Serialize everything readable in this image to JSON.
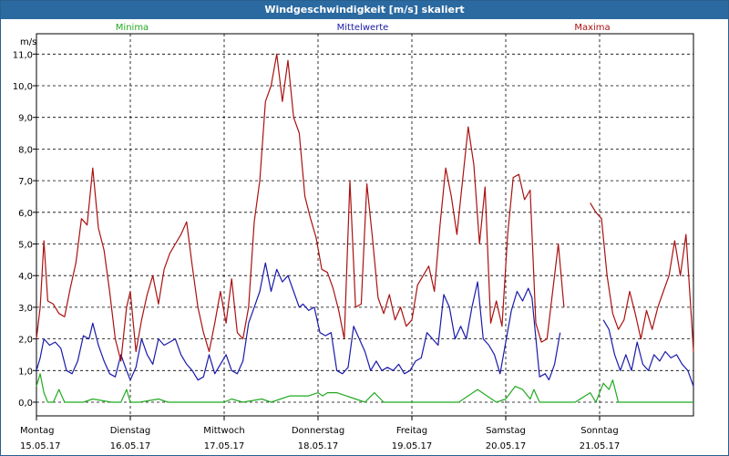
{
  "window": {
    "title": "Windgeschwindigkeit [m/s] skaliert"
  },
  "chart_data": {
    "type": "line",
    "title": "Windgeschwindigkeit [m/s] skaliert",
    "ylabel": "m/s",
    "xlabel": "",
    "ylim": [
      0,
      11.5
    ],
    "yticks": [
      0.0,
      1.0,
      2.0,
      3.0,
      4.0,
      5.0,
      6.0,
      7.0,
      8.0,
      9.0,
      10.0,
      11.0
    ],
    "ytick_labels": [
      "0,0",
      "1,0",
      "2,0",
      "3,0",
      "4,0",
      "5,0",
      "6,0",
      "7,0",
      "8,0",
      "9,0",
      "10,0",
      "11,0"
    ],
    "xlim": [
      0,
      7
    ],
    "days": [
      {
        "day": "Montag",
        "date": "15.05.17"
      },
      {
        "day": "Dienstag",
        "date": "16.05.17"
      },
      {
        "day": "Mittwoch",
        "date": "17.05.17"
      },
      {
        "day": "Donnerstag",
        "date": "18.05.17"
      },
      {
        "day": "Freitag",
        "date": "19.05.17"
      },
      {
        "day": "Samstag",
        "date": "20.05.17"
      },
      {
        "day": "Sonntag",
        "date": "21.05.17"
      }
    ],
    "grid": true,
    "legend_position": "top",
    "series": [
      {
        "name": "Minima",
        "color": "#22aa22",
        "x": [
          0,
          0.04,
          0.08,
          0.12,
          0.18,
          0.24,
          0.3,
          0.5,
          0.6,
          0.8,
          0.9,
          0.96,
          1.0,
          1.1,
          1.3,
          1.4,
          2.0,
          2.08,
          2.2,
          2.4,
          2.5,
          2.7,
          2.8,
          2.9,
          3.0,
          3.05,
          3.1,
          3.2,
          3.5,
          3.6,
          3.7,
          3.78,
          3.9,
          4.0,
          4.5,
          4.7,
          4.9,
          5.0,
          5.1,
          5.18,
          5.26,
          5.3,
          5.36,
          5.44,
          5.74,
          5.9,
          5.96,
          6.04,
          6.1,
          6.14,
          6.2,
          7.0
        ],
        "values": [
          0.5,
          0.9,
          0.3,
          0.0,
          0.0,
          0.4,
          0.0,
          0.0,
          0.1,
          0.0,
          0.0,
          0.4,
          0.0,
          0.0,
          0.1,
          0.0,
          0.0,
          0.1,
          0.0,
          0.1,
          0.0,
          0.2,
          0.2,
          0.2,
          0.3,
          0.2,
          0.3,
          0.3,
          0.0,
          0.3,
          0.0,
          0.0,
          0.0,
          0.0,
          0.0,
          0.4,
          0.0,
          0.1,
          0.5,
          0.4,
          0.1,
          0.4,
          0.0,
          0.0,
          0.0,
          0.3,
          0.0,
          0.6,
          0.4,
          0.7,
          0.0,
          0.0
        ]
      },
      {
        "name": "Mittelwerte",
        "color": "#1a1aaa",
        "x": [
          0,
          0.04,
          0.08,
          0.14,
          0.2,
          0.26,
          0.32,
          0.38,
          0.44,
          0.5,
          0.56,
          0.6,
          0.66,
          0.72,
          0.78,
          0.84,
          0.9,
          0.96,
          1.0,
          1.06,
          1.12,
          1.18,
          1.24,
          1.3,
          1.36,
          1.42,
          1.48,
          1.54,
          1.6,
          1.66,
          1.72,
          1.78,
          1.84,
          1.9,
          1.96,
          2.02,
          2.08,
          2.14,
          2.2,
          2.26,
          2.32,
          2.38,
          2.44,
          2.5,
          2.56,
          2.62,
          2.68,
          2.74,
          2.8,
          2.84,
          2.9,
          2.96,
          3.02,
          3.08,
          3.14,
          3.2,
          3.26,
          3.32,
          3.38,
          3.44,
          3.5,
          3.56,
          3.62,
          3.68,
          3.74,
          3.8,
          3.86,
          3.92,
          3.98,
          4.04,
          4.1,
          4.16,
          4.22,
          4.28,
          4.34,
          4.4,
          4.46,
          4.52,
          4.58,
          4.64,
          4.7,
          4.76,
          4.82,
          4.88,
          4.94,
          5.0,
          5.06,
          5.12,
          5.18,
          5.24,
          5.28,
          5.36,
          5.42,
          5.46
        ],
        "values": [
          1.0,
          1.4,
          2.0,
          1.8,
          1.9,
          1.7,
          1.0,
          0.9,
          1.3,
          2.1,
          2.0,
          2.5,
          1.8,
          1.3,
          0.9,
          0.8,
          1.5,
          1.0,
          0.7,
          1.1,
          2.0,
          1.5,
          1.2,
          2.0,
          1.8,
          1.9,
          2.0,
          1.5,
          1.2,
          1.0,
          0.7,
          0.8,
          1.5,
          0.9,
          1.2,
          1.5,
          1.0,
          0.9,
          1.3,
          2.5,
          3.0,
          3.5,
          4.4,
          3.5,
          4.2,
          3.8,
          4.0,
          3.5,
          3.0,
          3.1,
          2.9,
          3.0,
          2.2,
          2.1,
          2.2,
          1.0,
          0.9,
          1.1,
          2.4,
          2.0,
          1.6,
          1.0,
          1.3,
          1.0,
          1.1,
          1.0,
          1.2,
          0.9,
          1.0,
          1.3,
          1.4,
          2.2,
          2.0,
          1.8,
          3.4,
          3.0,
          2.0,
          2.4,
          2.0,
          3.0,
          3.8,
          2.0,
          1.8,
          1.5,
          0.9,
          1.9,
          2.9,
          3.5,
          3.2,
          3.6,
          3.3,
          0.8,
          0.9,
          0.7
        ],
        "segments": [
          {
            "x": [
              5.46,
              5.52,
              5.58
            ],
            "values": [
              0.7,
              1.2,
              2.2
            ]
          },
          {
            "x": [
              6.04,
              6.1,
              6.16,
              6.22,
              6.28,
              6.34,
              6.4,
              6.46,
              6.52,
              6.58,
              6.64,
              6.7,
              6.76,
              6.82,
              6.88,
              6.94,
              7.0
            ],
            "values": [
              2.6,
              2.3,
              1.5,
              1.0,
              1.5,
              1.0,
              1.9,
              1.2,
              1.0,
              1.5,
              1.3,
              1.6,
              1.4,
              1.5,
              1.2,
              1.0,
              0.5
            ]
          }
        ]
      },
      {
        "name": "Maxima",
        "color": "#aa1111",
        "x": [
          0,
          0.04,
          0.08,
          0.12,
          0.18,
          0.24,
          0.3,
          0.36,
          0.42,
          0.48,
          0.54,
          0.6,
          0.66,
          0.72,
          0.78,
          0.84,
          0.9,
          0.96,
          1.0,
          1.06,
          1.12,
          1.18,
          1.24,
          1.3,
          1.36,
          1.42,
          1.48,
          1.54,
          1.6,
          1.66,
          1.72,
          1.78,
          1.84,
          1.9,
          1.96,
          2.02,
          2.08,
          2.14,
          2.2,
          2.26,
          2.32,
          2.38,
          2.44,
          2.5,
          2.56,
          2.62,
          2.68,
          2.74,
          2.8,
          2.86,
          2.92,
          2.98,
          3.04,
          3.1,
          3.16,
          3.22,
          3.28,
          3.34,
          3.4,
          3.46,
          3.52,
          3.58,
          3.64,
          3.7,
          3.76,
          3.82,
          3.88,
          3.94,
          4.0,
          4.06,
          4.12,
          4.18,
          4.24,
          4.3,
          4.36,
          4.42,
          4.48,
          4.54,
          4.6,
          4.66,
          4.72,
          4.78,
          4.84,
          4.9,
          4.96,
          5.02,
          5.08,
          5.14,
          5.2,
          5.26,
          5.32,
          5.38,
          5.44,
          5.5,
          5.56,
          5.62
        ],
        "values": [
          2.0,
          3.0,
          5.1,
          3.2,
          3.1,
          2.8,
          2.7,
          3.6,
          4.4,
          5.8,
          5.6,
          7.4,
          5.5,
          4.8,
          3.5,
          2.0,
          1.3,
          3.0,
          3.5,
          1.6,
          2.6,
          3.4,
          4.0,
          3.1,
          4.2,
          4.7,
          5.0,
          5.3,
          5.7,
          4.3,
          3.0,
          2.2,
          1.6,
          2.5,
          3.5,
          2.5,
          3.9,
          2.2,
          2.0,
          3.0,
          5.7,
          7.0,
          9.5,
          10.0,
          11.0,
          9.5,
          10.8,
          9.0,
          8.5,
          6.5,
          5.8,
          5.2,
          4.2,
          4.1,
          3.6,
          2.9,
          2.0,
          7.0,
          3.0,
          3.1,
          6.9,
          5.2,
          3.3,
          2.8,
          3.4,
          2.6,
          3.0,
          2.4,
          2.6,
          3.7,
          4.0,
          4.3,
          3.5,
          5.6,
          7.4,
          6.5,
          5.3,
          7.0,
          8.7,
          7.5,
          5.0,
          6.8,
          2.5,
          3.2,
          2.4,
          5.3,
          7.1,
          7.2,
          6.4,
          6.7,
          2.5,
          1.9,
          2.0,
          3.5,
          5.0,
          3.0
        ],
        "segments": [
          {
            "x": [
              5.9,
              5.96,
              6.02,
              6.08,
              6.14,
              6.2,
              6.26,
              6.32,
              6.38,
              6.44,
              6.5,
              6.56,
              6.62,
              6.68,
              6.74,
              6.8,
              6.86,
              6.92,
              6.98,
              7.0
            ],
            "values": [
              6.3,
              6.0,
              5.8,
              4.0,
              2.8,
              2.3,
              2.6,
              3.5,
              2.8,
              2.0,
              2.9,
              2.3,
              3.0,
              3.5,
              4.0,
              5.1,
              4.0,
              5.3,
              2.6,
              1.6
            ]
          }
        ]
      }
    ]
  }
}
